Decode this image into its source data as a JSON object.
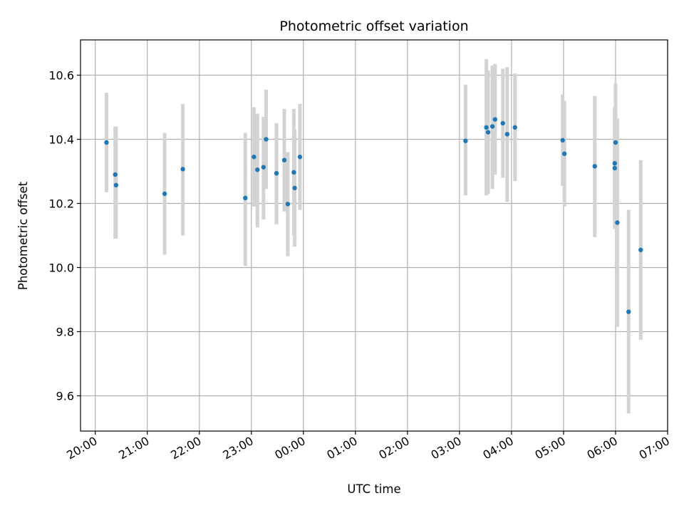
{
  "chart_data": {
    "type": "scatter",
    "title": "Photometric offset variation",
    "xlabel": "UTC time",
    "ylabel": "Photometric offset",
    "x_ticks": [
      "20:00",
      "21:00",
      "22:00",
      "23:00",
      "00:00",
      "01:00",
      "02:00",
      "03:00",
      "04:00",
      "05:00",
      "06:00",
      "07:00"
    ],
    "y_ticks": [
      "9.6",
      "9.8",
      "10.0",
      "10.2",
      "10.4",
      "10.6"
    ],
    "xlim": [
      "19:43",
      "07:00"
    ],
    "ylim": [
      9.49,
      10.71
    ],
    "grid": true,
    "colors": {
      "points": "#1f77b4",
      "errorbars": "#d3d3d3",
      "grid": "#b0b0b0"
    },
    "points": [
      {
        "x": "20:13",
        "y": 10.39,
        "lo": 10.235,
        "hi": 10.545
      },
      {
        "x": "20:23",
        "y": 10.29,
        "lo": 10.09,
        "hi": 10.44
      },
      {
        "x": "20:24",
        "y": 10.257,
        "lo": 10.09,
        "hi": 10.44
      },
      {
        "x": "21:20",
        "y": 10.23,
        "lo": 10.04,
        "hi": 10.42
      },
      {
        "x": "21:41",
        "y": 10.307,
        "lo": 10.1,
        "hi": 10.51
      },
      {
        "x": "22:53",
        "y": 10.217,
        "lo": 10.005,
        "hi": 10.42
      },
      {
        "x": "23:03",
        "y": 10.345,
        "lo": 10.19,
        "hi": 10.5
      },
      {
        "x": "23:07",
        "y": 10.305,
        "lo": 10.125,
        "hi": 10.48
      },
      {
        "x": "23:14",
        "y": 10.313,
        "lo": 10.15,
        "hi": 10.47
      },
      {
        "x": "23:17",
        "y": 10.4,
        "lo": 10.245,
        "hi": 10.555
      },
      {
        "x": "23:29",
        "y": 10.294,
        "lo": 10.135,
        "hi": 10.45
      },
      {
        "x": "23:38",
        "y": 10.335,
        "lo": 10.175,
        "hi": 10.495
      },
      {
        "x": "23:42",
        "y": 10.198,
        "lo": 10.035,
        "hi": 10.36
      },
      {
        "x": "23:49",
        "y": 10.297,
        "lo": 10.1,
        "hi": 10.495
      },
      {
        "x": "23:50",
        "y": 10.248,
        "lo": 10.065,
        "hi": 10.43
      },
      {
        "x": "23:56",
        "y": 10.345,
        "lo": 10.18,
        "hi": 10.51
      },
      {
        "x": "03:07",
        "y": 10.395,
        "lo": 10.225,
        "hi": 10.57
      },
      {
        "x": "03:31",
        "y": 10.437,
        "lo": 10.225,
        "hi": 10.65
      },
      {
        "x": "03:33",
        "y": 10.422,
        "lo": 10.23,
        "hi": 10.615
      },
      {
        "x": "03:38",
        "y": 10.44,
        "lo": 10.245,
        "hi": 10.63
      },
      {
        "x": "03:41",
        "y": 10.462,
        "lo": 10.29,
        "hi": 10.635
      },
      {
        "x": "03:50",
        "y": 10.45,
        "lo": 10.28,
        "hi": 10.62
      },
      {
        "x": "03:55",
        "y": 10.416,
        "lo": 10.205,
        "hi": 10.625
      },
      {
        "x": "04:04",
        "y": 10.437,
        "lo": 10.27,
        "hi": 10.605
      },
      {
        "x": "04:59",
        "y": 10.397,
        "lo": 10.255,
        "hi": 10.54
      },
      {
        "x": "05:01",
        "y": 10.355,
        "lo": 10.19,
        "hi": 10.52
      },
      {
        "x": "05:36",
        "y": 10.316,
        "lo": 10.095,
        "hi": 10.535
      },
      {
        "x": "05:59",
        "y": 10.325,
        "lo": 10.15,
        "hi": 10.5
      },
      {
        "x": "05:59",
        "y": 10.31,
        "lo": 10.12,
        "hi": 10.5
      },
      {
        "x": "06:00",
        "y": 10.39,
        "lo": 10.2,
        "hi": 10.575
      },
      {
        "x": "06:02",
        "y": 10.14,
        "lo": 9.815,
        "hi": 10.465
      },
      {
        "x": "06:15",
        "y": 9.862,
        "lo": 9.545,
        "hi": 10.18
      },
      {
        "x": "06:29",
        "y": 10.055,
        "lo": 9.775,
        "hi": 10.335
      }
    ]
  }
}
